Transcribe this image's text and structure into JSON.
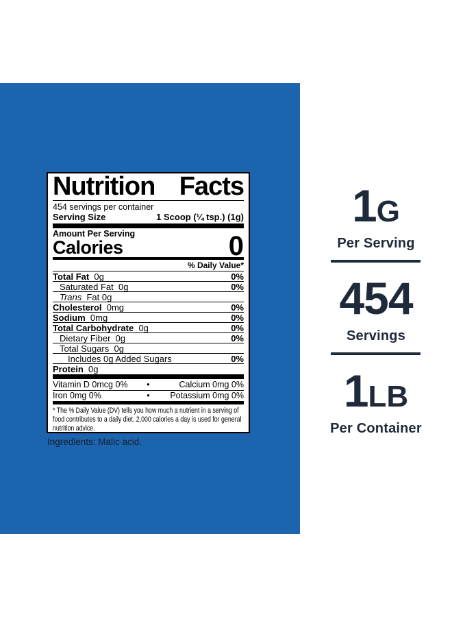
{
  "colors": {
    "panel_blue": "#1c64ae",
    "navy": "#1e2939",
    "label_black": "#000000",
    "ingredients_text": "#16202d"
  },
  "label": {
    "title_words": [
      "Nutrition",
      "Facts"
    ],
    "servings_per_container": "454 servings per container",
    "serving_size_label": "Serving Size",
    "serving_size_value": "1 Scoop (¼ tsp.) (1g)",
    "amount_per_serving": "Amount Per Serving",
    "calories_label": "Calories",
    "calories_value": "0",
    "daily_value_header": "% Daily Value*",
    "nutrient_rows": [
      {
        "name": "Total Fat",
        "amount": "0g",
        "dv": "0%",
        "bold": true,
        "italic": false,
        "indent": 0
      },
      {
        "name": "Saturated Fat",
        "amount": "0g",
        "dv": "0%",
        "bold": false,
        "italic": false,
        "indent": 1
      },
      {
        "name": "Trans",
        "amount": "Fat  0g",
        "dv": "",
        "bold": false,
        "italic": true,
        "indent": 1
      },
      {
        "name": "Cholesterol",
        "amount": "0mg",
        "dv": "0%",
        "bold": true,
        "italic": false,
        "indent": 0
      },
      {
        "name": "Sodium",
        "amount": "0mg",
        "dv": "0%",
        "bold": true,
        "italic": false,
        "indent": 0
      },
      {
        "name": "Total Carbohydrate",
        "amount": "0g",
        "dv": "0%",
        "bold": true,
        "italic": false,
        "indent": 0
      },
      {
        "name": "Dietary Fiber",
        "amount": "0g",
        "dv": "0%",
        "bold": false,
        "italic": false,
        "indent": 1
      },
      {
        "name": "Total Sugars",
        "amount": "0g",
        "dv": "",
        "bold": false,
        "italic": false,
        "indent": 1
      },
      {
        "name": "Includes 0g Added Sugars",
        "amount": "",
        "dv": "0%",
        "bold": false,
        "italic": false,
        "indent": 2
      },
      {
        "name": "Protein",
        "amount": "0g",
        "dv": "",
        "bold": true,
        "italic": false,
        "indent": 0
      }
    ],
    "micronutrient_rows": [
      {
        "left": "Vitamin D  0mcg  0%",
        "bullet": "•",
        "right": "Calcium  0mg  0%"
      },
      {
        "left": "Iron  0mg  0%",
        "bullet": "•",
        "right": "Potassium  0mg  0%"
      }
    ],
    "footnote": "* The % Daily Value (DV) tells you how much a nutrient in a serving of food contributes to a daily diet. 2,000 calories a day is used for general nutrition advice."
  },
  "ingredients": "Ingredients: Malic acid.",
  "stats": [
    {
      "value": "1",
      "suffix": "G",
      "label": "Per Serving"
    },
    {
      "value": "454",
      "suffix": "",
      "label": "Servings"
    },
    {
      "value": "1",
      "suffix": "LB",
      "label": "Per Container"
    }
  ]
}
